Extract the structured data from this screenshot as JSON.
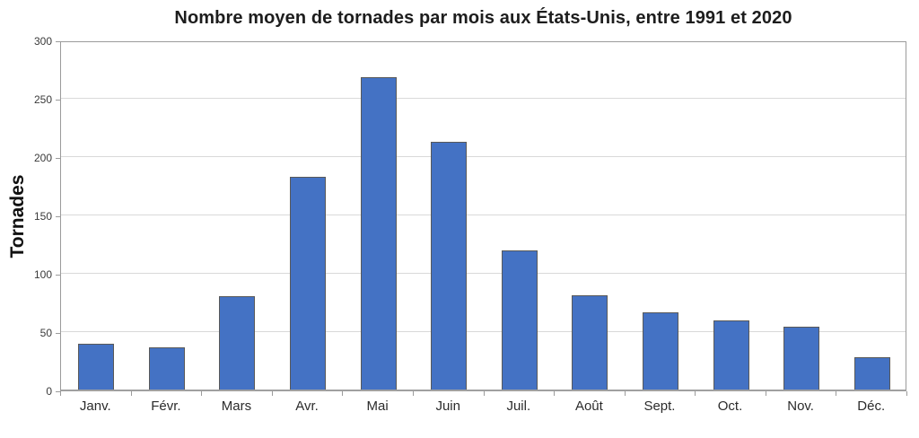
{
  "page": {
    "background": "#ffffff"
  },
  "chart_data": {
    "type": "bar",
    "title": "Nombre moyen de tornades par mois aux États-Unis, entre 1991 et 2020",
    "ylabel": "Tornades",
    "xlabel": "",
    "categories": [
      "Janv.",
      "Févr.",
      "Mars",
      "Avr.",
      "Mai",
      "Juin",
      "Juil.",
      "Août",
      "Sept.",
      "Oct.",
      "Nov.",
      "Déc."
    ],
    "values": [
      39,
      36,
      80,
      182,
      268,
      212,
      119,
      81,
      66,
      59,
      54,
      28
    ],
    "ylim": [
      0,
      300
    ],
    "yticks": [
      0,
      50,
      100,
      150,
      200,
      250,
      300
    ],
    "grid": "horizontal",
    "legend": "none",
    "colors": {
      "bar_fill": "#4472C4",
      "bar_border": "#595959",
      "gridline": "#D9D9D9",
      "axis": "#9B9B9B",
      "title_text": "#1D1D1D",
      "tick_text": "#3A3A3A"
    }
  }
}
